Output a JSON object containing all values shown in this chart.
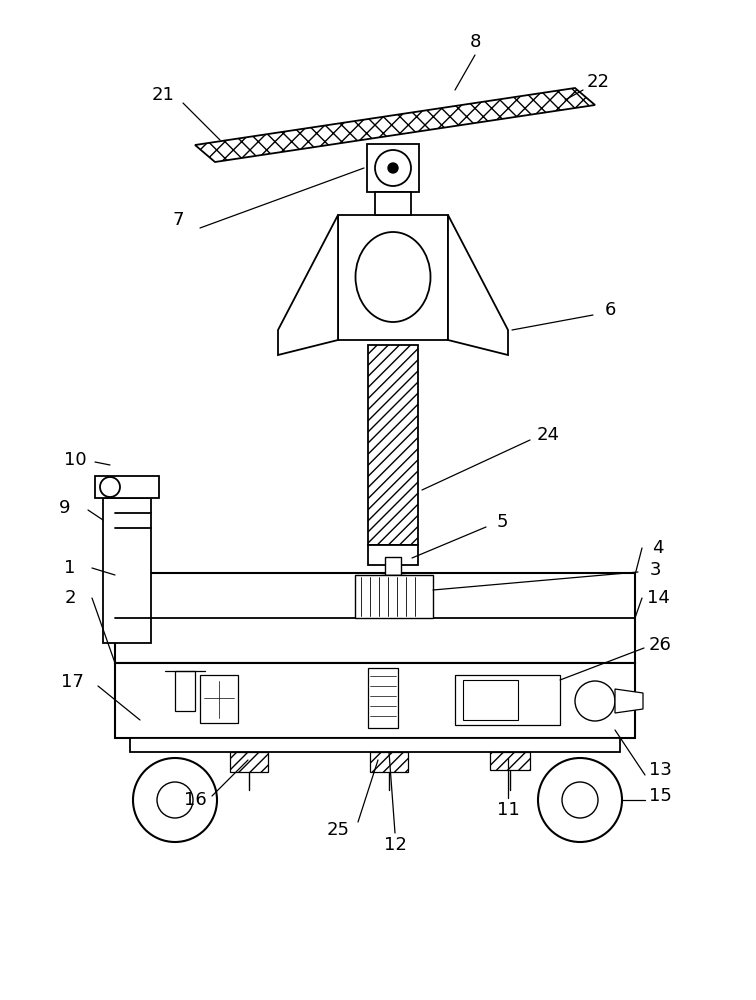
{
  "background_color": "#ffffff",
  "line_color": "#000000",
  "figsize": [
    7.56,
    10.0
  ],
  "dpi": 100
}
